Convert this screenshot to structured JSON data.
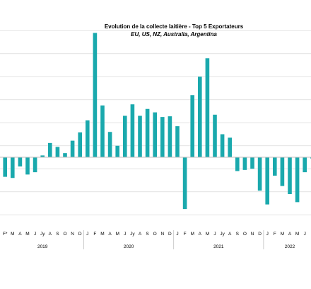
{
  "chart_data": {
    "type": "bar",
    "title": "Evolution de la collecte laitière - Top 5 Exportateurs",
    "subtitle": "EU, US, NZ, Australia, Argentina",
    "colors": {
      "bar": "#1aa9ad",
      "grid": "#d9d9d9",
      "zero_line": "#bfbfbf",
      "divider": "#bfbfbf"
    },
    "grid": true,
    "legend": "none",
    "ylim": [
      -2.5,
      6
    ],
    "y_tick_step": 1,
    "categories": [
      "F*",
      "M",
      "A",
      "M",
      "J",
      "Jy",
      "A",
      "S",
      "O",
      "N",
      "D",
      "J",
      "F",
      "M",
      "A",
      "M",
      "J",
      "Jy",
      "A",
      "S",
      "O",
      "N",
      "D",
      "J",
      "F",
      "M",
      "A",
      "M",
      "J",
      "Jy",
      "A",
      "S",
      "O",
      "N",
      "D",
      "J",
      "F",
      "M",
      "A",
      "M",
      "J",
      "J"
    ],
    "values": [
      -0.85,
      -0.9,
      -0.4,
      -0.75,
      -0.65,
      0.08,
      0.62,
      0.45,
      0.18,
      0.72,
      1.08,
      1.6,
      5.4,
      2.25,
      1.1,
      0.5,
      1.8,
      2.3,
      1.8,
      2.1,
      1.95,
      1.75,
      1.78,
      1.35,
      -2.25,
      2.7,
      3.5,
      4.3,
      1.85,
      1.0,
      0.85,
      -0.6,
      -0.55,
      -0.5,
      -1.45,
      -2.05,
      -0.8,
      -1.25,
      -1.6,
      -1.95,
      -0.65,
      -0.05
    ],
    "years": [
      {
        "label": "2019",
        "first": 0,
        "last": 10
      },
      {
        "label": "2020",
        "first": 11,
        "last": 22
      },
      {
        "label": "2021",
        "first": 23,
        "last": 34
      },
      {
        "label": "2022",
        "first": 35,
        "last": 41
      }
    ]
  }
}
